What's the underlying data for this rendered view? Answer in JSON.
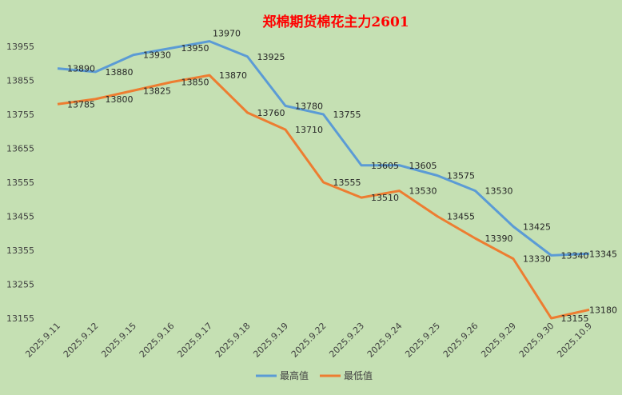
{
  "chart_data": {
    "type": "line",
    "title": "郑棉期货棉花主力2601",
    "categories": [
      "2025.9.11",
      "2025.9.12",
      "2025.9.15",
      "2025.9.16",
      "2025.9.17",
      "2025.9.18",
      "2025.9.19",
      "2025.9.22",
      "2025.9.23",
      "2025.9.24",
      "2025.9.25",
      "2025.9.26",
      "2025.9.29",
      "2025.9.30",
      "2025.10.9"
    ],
    "series": [
      {
        "name": "最高值",
        "color": "#5b9bd5",
        "values": [
          13890,
          13880,
          13930,
          13950,
          13970,
          13925,
          13780,
          13755,
          13605,
          13605,
          13575,
          13530,
          13425,
          13340,
          13345
        ]
      },
      {
        "name": "最低值",
        "color": "#ed7d31",
        "values": [
          13785,
          13800,
          13825,
          13850,
          13870,
          13760,
          13710,
          13555,
          13510,
          13530,
          13455,
          13390,
          13330,
          13155,
          13180
        ]
      }
    ],
    "yticks": [
      13155,
      13255,
      13355,
      13455,
      13555,
      13655,
      13755,
      13855,
      13955
    ],
    "ylim": [
      13155,
      13955
    ],
    "xlabel": "",
    "ylabel": "",
    "grid": false,
    "legend": "bottom"
  }
}
